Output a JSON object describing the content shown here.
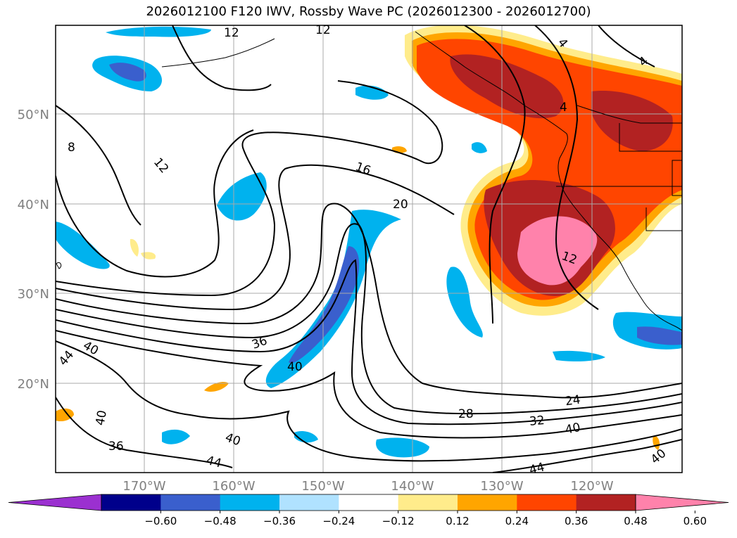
{
  "title": "2026012100 F120 IWV, Rossby Wave PC (2026012300 - 2026012700)",
  "lat_labels": [
    "50°N",
    "40°N",
    "30°N",
    "20°N"
  ],
  "lon_labels": [
    "170°W",
    "160°W",
    "150°W",
    "140°W",
    "130°W",
    "120°W"
  ],
  "colorbar": {
    "colors": [
      "#9b30d0",
      "#00008b",
      "#3a5fcd",
      "#00b2ee",
      "#b0e2ff",
      "#ffffff",
      "#ffec8b",
      "#ffa500",
      "#ff4500",
      "#b22222",
      "#ff82ab"
    ],
    "tick_labels": [
      "−0.60",
      "−0.48",
      "−0.36",
      "−0.24",
      "−0.12",
      "0.12",
      "0.24",
      "0.36",
      "0.48",
      "0.60"
    ]
  },
  "contour_labels": [
    "12",
    "12",
    "8",
    "12",
    "16",
    "20",
    "36",
    "40",
    "40",
    "44",
    "40",
    "36",
    "40",
    "44",
    "28",
    "32",
    "24",
    "40",
    "44",
    "40",
    "12",
    "4",
    "4",
    "4"
  ]
}
